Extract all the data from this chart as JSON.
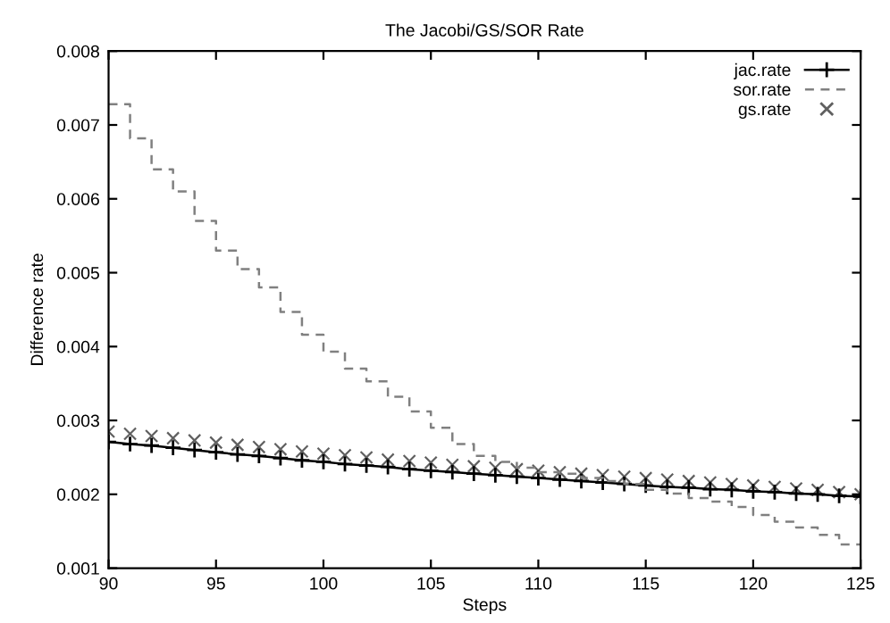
{
  "chart_data": {
    "type": "line",
    "title": "The Jacobi/GS/SOR Rate",
    "xlabel": "Steps",
    "ylabel": "Difference rate",
    "x": [
      90,
      91,
      92,
      93,
      94,
      95,
      96,
      97,
      98,
      99,
      100,
      101,
      102,
      103,
      104,
      105,
      106,
      107,
      108,
      109,
      110,
      111,
      112,
      113,
      114,
      115,
      116,
      117,
      118,
      119,
      120,
      121,
      122,
      123,
      124,
      125
    ],
    "series": [
      {
        "name": "jac.rate",
        "color": "#000000",
        "marker": "cross",
        "line_style": "solid",
        "values": [
          0.00271,
          0.00268,
          0.00266,
          0.00263,
          0.0026,
          0.00257,
          0.00254,
          0.00252,
          0.00249,
          0.00246,
          0.00244,
          0.00241,
          0.00239,
          0.00237,
          0.00234,
          0.00232,
          0.0023,
          0.00228,
          0.00226,
          0.00224,
          0.00222,
          0.0022,
          0.00218,
          0.00216,
          0.00214,
          0.00212,
          0.0021,
          0.00209,
          0.00207,
          0.00206,
          0.00204,
          0.00203,
          0.00201,
          0.002,
          0.00198,
          0.00197
        ]
      },
      {
        "name": "sor.rate",
        "type": "step",
        "color": "#808080",
        "marker": "none",
        "line_style": "dashed",
        "values": [
          0.00728,
          0.00682,
          0.0064,
          0.0061,
          0.0057,
          0.0053,
          0.00505,
          0.0048,
          0.00447,
          0.00416,
          0.00393,
          0.0037,
          0.00353,
          0.00332,
          0.00312,
          0.0029,
          0.00268,
          0.00252,
          0.00244,
          0.00236,
          0.0023,
          0.00228,
          0.00222,
          0.00218,
          0.00214,
          0.00206,
          0.00201,
          0.00195,
          0.0019,
          0.00183,
          0.00172,
          0.00163,
          0.00155,
          0.00145,
          0.00132,
          0.00132
        ]
      },
      {
        "name": "gs.rate",
        "type": "scatter",
        "color": "#606060",
        "marker": "cross",
        "values": [
          0.00285,
          0.00282,
          0.00279,
          0.00276,
          0.00273,
          0.0027,
          0.00267,
          0.00264,
          0.00261,
          0.00258,
          0.00255,
          0.00253,
          0.0025,
          0.00247,
          0.00245,
          0.00243,
          0.0024,
          0.00238,
          0.00236,
          0.00234,
          0.00232,
          0.0023,
          0.00228,
          0.00226,
          0.00224,
          0.00222,
          0.0022,
          0.00218,
          0.00216,
          0.00214,
          0.00212,
          0.0021,
          0.00208,
          0.00206,
          0.00203,
          0.002
        ]
      }
    ],
    "xlim": [
      90,
      125
    ],
    "xticks": [
      90,
      95,
      100,
      105,
      110,
      115,
      120,
      125
    ],
    "ylim": [
      0.001,
      0.008
    ],
    "yticks": [
      0.001,
      0.002,
      0.003,
      0.004,
      0.005,
      0.006,
      0.007,
      0.008
    ],
    "grid": false,
    "legend": "top right"
  }
}
